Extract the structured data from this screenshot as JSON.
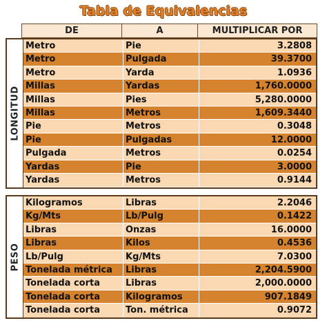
{
  "title": "Tabla de Equivalencias",
  "headers": [
    "DE",
    "A",
    "MULTIPLICAR POR"
  ],
  "sections": [
    {
      "label": "LONGITUD",
      "rows": [
        [
          "Metro",
          "Pie",
          "3.2808"
        ],
        [
          "Metro",
          "Pulgada",
          "39.3700"
        ],
        [
          "Metro",
          "Yarda",
          "1.0936"
        ],
        [
          "Millas",
          "Yardas",
          "1,760.0000"
        ],
        [
          "Millas",
          "Pies",
          "5,280.0000"
        ],
        [
          "Millas",
          "Metros",
          "1,609.3440"
        ],
        [
          "Pie",
          "Metros",
          "0.3048"
        ],
        [
          "Pie",
          "Pulgadas",
          "12.0000"
        ],
        [
          "Pulgada",
          "Metros",
          "0.0254"
        ],
        [
          "Yardas",
          "Pie",
          "3.0000"
        ],
        [
          "Yardas",
          "Metros",
          "0.9144"
        ]
      ]
    },
    {
      "label": "PESO",
      "rows": [
        [
          "Kilogramos",
          "Libras",
          "2.2046"
        ],
        [
          "Kg/Mts",
          "Lb/Pulg",
          "0.1422"
        ],
        [
          "Libras",
          "Onzas",
          "16.0000"
        ],
        [
          "Libras",
          "Kilos",
          "0.4536"
        ],
        [
          "Lb/Pulg",
          "Kg/Mts",
          "7.0300"
        ],
        [
          "Tonelada métrica",
          "Libras",
          "2,204.5900"
        ],
        [
          "Tonelada corta",
          "Libras",
          "2,000.0000"
        ],
        [
          "Tonelada corta",
          "Kilogramos",
          "907.1849"
        ],
        [
          "Tonelada corta",
          "Ton. métrica",
          "0.9072"
        ]
      ]
    }
  ],
  "colors": {
    "light_row": "#fad9b2",
    "dark_row": "#d5832e",
    "title": "#e0802a"
  }
}
